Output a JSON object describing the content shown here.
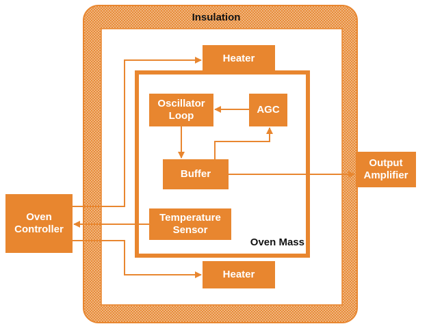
{
  "title": "Insulation",
  "nodes": [
    {
      "lines": [
        "Heater"
      ]
    },
    {
      "lines": [
        "Oscillator",
        "Loop"
      ]
    },
    {
      "lines": [
        "AGC"
      ]
    },
    {
      "lines": [
        "Buffer"
      ]
    },
    {
      "lines": [
        "Temperature",
        "Sensor"
      ]
    },
    {
      "lines": [
        "Heater"
      ]
    },
    {
      "lines": [
        "Output",
        "Amplifier"
      ]
    },
    {
      "lines": [
        "Oven",
        "Controller"
      ]
    }
  ],
  "oven_mass_label": "Oven Mass"
}
